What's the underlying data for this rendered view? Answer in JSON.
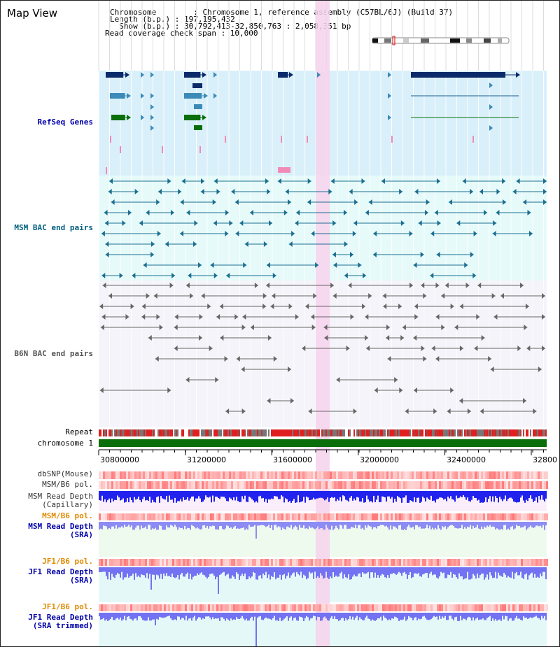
{
  "view_title": "Map View",
  "info_lines": [
    "Chromosome        : Chromosome 1, reference assembly (C57BL/6J) (Build 37)",
    "Length (b.p.) : 197,195,432",
    "  Show (b.p.) : 30,792,413-32,850,763 : 2,058,351 bp",
    "Read coverage check span : 10,000"
  ],
  "tracks": {
    "refseq": "RefSeq Genes",
    "msm_bac": "MSM BAC end pairs",
    "b6n_bac": "B6N BAC end pairs",
    "repeat": "Repeat",
    "chromosome": "chromosome 1",
    "dbsnp": "dbSNP(Mouse)",
    "msm_b6_pol": "MSM/B6 pol.",
    "msm_depth_cap_1": "MSM Read Depth",
    "msm_depth_cap_2": "(Capillary)",
    "msm_b6_pol_2": "MSM/B6 pol.",
    "msm_depth_sra_1": "MSM Read Depth",
    "msm_depth_sra_2": "(SRA)",
    "jf1_b6_pol": "JF1/B6 pol.",
    "jf1_depth_sra_1": "JF1 Read Depth",
    "jf1_depth_sra_2": "(SRA)",
    "jf1_b6_pol_2": "JF1/B6 pol.",
    "jf1_depth_trim_1": "JF1 Read Depth",
    "jf1_depth_trim_2": "(SRA trimmed)"
  },
  "axis_ticks": [
    "30800000",
    "31200000",
    "31600000",
    "32000000",
    "32400000",
    "32800"
  ],
  "colors": {
    "refseq_bg": "#d9f0fa",
    "msm_bg": "#e6fafa",
    "b6n_bg": "#f4f4fa",
    "highlight": "#f6d2ec",
    "chromosome_bar": "#0a6e0a",
    "refseq_label": "#0000aa",
    "msm_label": "#006080",
    "orange_label": "#e08a00",
    "blue_label": "#0000aa"
  }
}
